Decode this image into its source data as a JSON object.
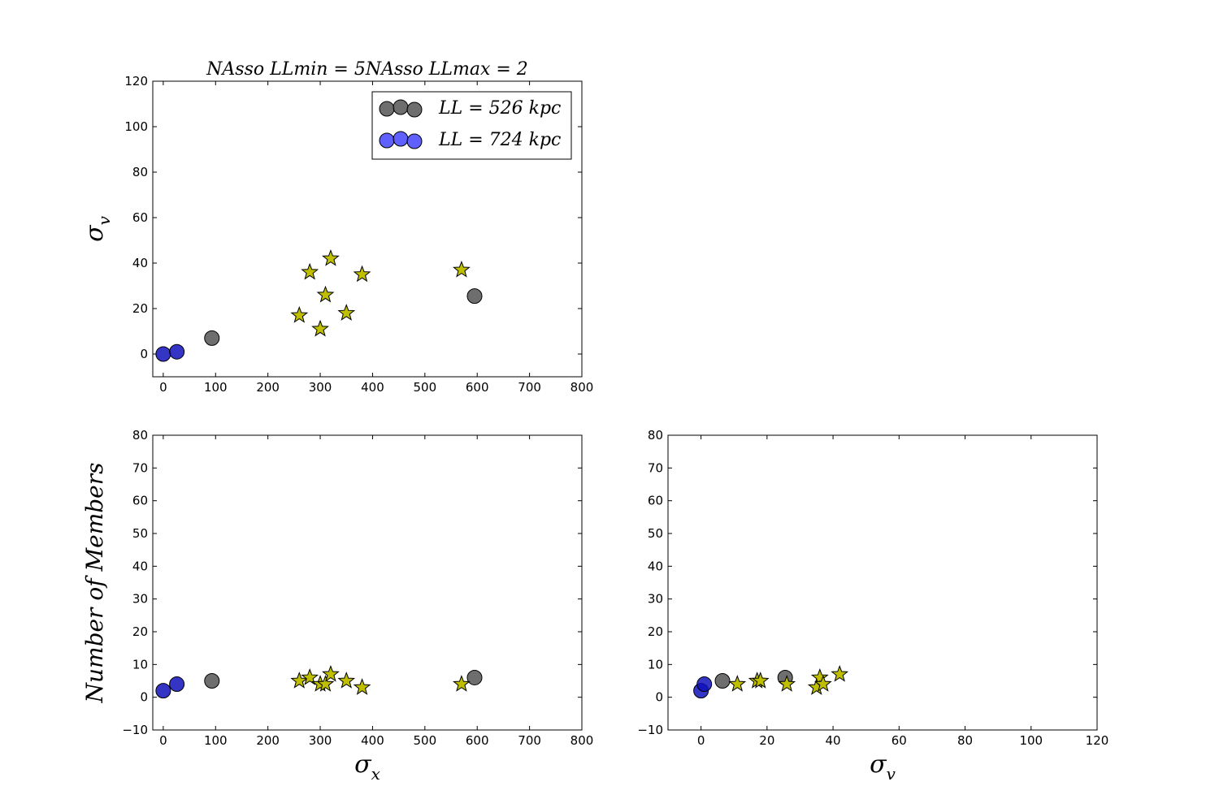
{
  "colors": {
    "grey_group": "#555555",
    "blue_group": "#4444ff",
    "blue_dark": "#1111bb",
    "star_fill": "#bfbf00",
    "axes": "#000000",
    "background": "#ffffff"
  },
  "legend": {
    "placement": "top-right of top-left panel",
    "entries": [
      {
        "marker": "circle",
        "color": "#555555",
        "label": "LL = 526 kpc"
      },
      {
        "marker": "circle",
        "color": "#4444ff",
        "label": "LL = 724 kpc"
      }
    ]
  },
  "chart_data": [
    {
      "type": "scatter",
      "panel": "top-left",
      "title": "NAsso LLmin = 5NAsso LLmax = 2",
      "xlabel": "",
      "ylabel": "σv",
      "xlim": [
        -20,
        800
      ],
      "ylim": [
        -10,
        120
      ],
      "xticks": [
        "0",
        "100",
        "200",
        "300",
        "400",
        "500",
        "600",
        "700",
        "800"
      ],
      "yticks": [
        "0",
        "20",
        "40",
        "60",
        "80",
        "100",
        "120"
      ],
      "grid": false,
      "series": [
        {
          "name": "LL = 526 kpc",
          "marker": "circle",
          "color": "#555555",
          "points": [
            {
              "x": 93,
              "y": 7
            },
            {
              "x": 595,
              "y": 25.5
            }
          ]
        },
        {
          "name": "LL = 724 kpc",
          "marker": "circle",
          "color": "#4444ff",
          "points": [
            {
              "x": 0,
              "y": 0
            },
            {
              "x": 26,
              "y": 1
            }
          ]
        },
        {
          "marker": "star",
          "color": "#bfbf00",
          "points": [
            {
              "x": 260,
              "y": 17
            },
            {
              "x": 280,
              "y": 36
            },
            {
              "x": 300,
              "y": 11
            },
            {
              "x": 310,
              "y": 26
            },
            {
              "x": 320,
              "y": 42
            },
            {
              "x": 350,
              "y": 18
            },
            {
              "x": 380,
              "y": 35
            },
            {
              "x": 570,
              "y": 37
            }
          ]
        }
      ]
    },
    {
      "type": "scatter",
      "panel": "bottom-left",
      "title": "",
      "xlabel": "σx",
      "ylabel": "Number of Members",
      "xlim": [
        -20,
        800
      ],
      "ylim": [
        -10,
        80
      ],
      "xticks": [
        "0",
        "100",
        "200",
        "300",
        "400",
        "500",
        "600",
        "700",
        "800"
      ],
      "yticks": [
        "−10",
        "0",
        "10",
        "20",
        "30",
        "40",
        "50",
        "60",
        "70",
        "80"
      ],
      "grid": false,
      "series": [
        {
          "name": "LL = 526 kpc",
          "marker": "circle",
          "color": "#555555",
          "points": [
            {
              "x": 93,
              "y": 5
            },
            {
              "x": 595,
              "y": 6
            }
          ]
        },
        {
          "name": "LL = 724 kpc",
          "marker": "circle",
          "color": "#4444ff",
          "points": [
            {
              "x": 0,
              "y": 2
            },
            {
              "x": 26,
              "y": 4
            }
          ]
        },
        {
          "marker": "star",
          "color": "#bfbf00",
          "points": [
            {
              "x": 260,
              "y": 5
            },
            {
              "x": 280,
              "y": 6
            },
            {
              "x": 300,
              "y": 4
            },
            {
              "x": 310,
              "y": 4
            },
            {
              "x": 320,
              "y": 7
            },
            {
              "x": 350,
              "y": 5
            },
            {
              "x": 380,
              "y": 3
            },
            {
              "x": 570,
              "y": 4
            }
          ]
        }
      ]
    },
    {
      "type": "scatter",
      "panel": "bottom-right",
      "title": "",
      "xlabel": "σv",
      "ylabel": "",
      "xlim": [
        -10,
        120
      ],
      "ylim": [
        -10,
        80
      ],
      "xticks": [
        "0",
        "20",
        "40",
        "60",
        "80",
        "100",
        "120"
      ],
      "yticks": [
        "−10",
        "0",
        "10",
        "20",
        "30",
        "40",
        "50",
        "60",
        "70",
        "80"
      ],
      "grid": false,
      "series": [
        {
          "name": "LL = 526 kpc",
          "marker": "circle",
          "color": "#555555",
          "points": [
            {
              "x": 6.5,
              "y": 5
            },
            {
              "x": 25.5,
              "y": 6
            }
          ]
        },
        {
          "name": "LL = 724 kpc",
          "marker": "circle",
          "color": "#4444ff",
          "points": [
            {
              "x": 0,
              "y": 2
            },
            {
              "x": 1,
              "y": 4
            }
          ]
        },
        {
          "marker": "star",
          "color": "#bfbf00",
          "points": [
            {
              "x": 17,
              "y": 5
            },
            {
              "x": 36,
              "y": 6
            },
            {
              "x": 11,
              "y": 4
            },
            {
              "x": 26,
              "y": 4
            },
            {
              "x": 42,
              "y": 7
            },
            {
              "x": 18,
              "y": 5
            },
            {
              "x": 35,
              "y": 3
            },
            {
              "x": 37,
              "y": 4
            }
          ]
        }
      ]
    }
  ]
}
